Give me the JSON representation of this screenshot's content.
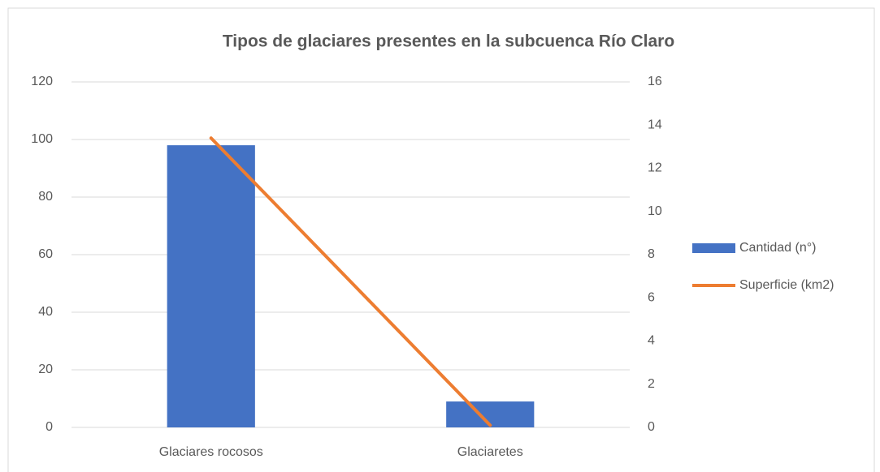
{
  "chart_data": {
    "type": "bar",
    "title": "Tipos de glaciares presentes en la subcuenca Río Claro",
    "categories": [
      "Glaciares rocosos",
      "Glaciaretes"
    ],
    "series": [
      {
        "name": "Cantidad (n°)",
        "color": "#4472c4",
        "type": "bar",
        "values": [
          98,
          9
        ]
      },
      {
        "name": "Superficie (km2)",
        "color": "#ed7d31",
        "type": "line",
        "axis": "y2",
        "values": [
          13.4,
          0.1
        ]
      }
    ],
    "ylim": [
      0,
      120
    ],
    "yticks": [
      0,
      20,
      40,
      60,
      80,
      100,
      120
    ],
    "y2lim": [
      0,
      16
    ],
    "y2ticks": [
      0,
      2,
      4,
      6,
      8,
      10,
      12,
      14,
      16
    ],
    "grid": true,
    "legend": "right"
  }
}
